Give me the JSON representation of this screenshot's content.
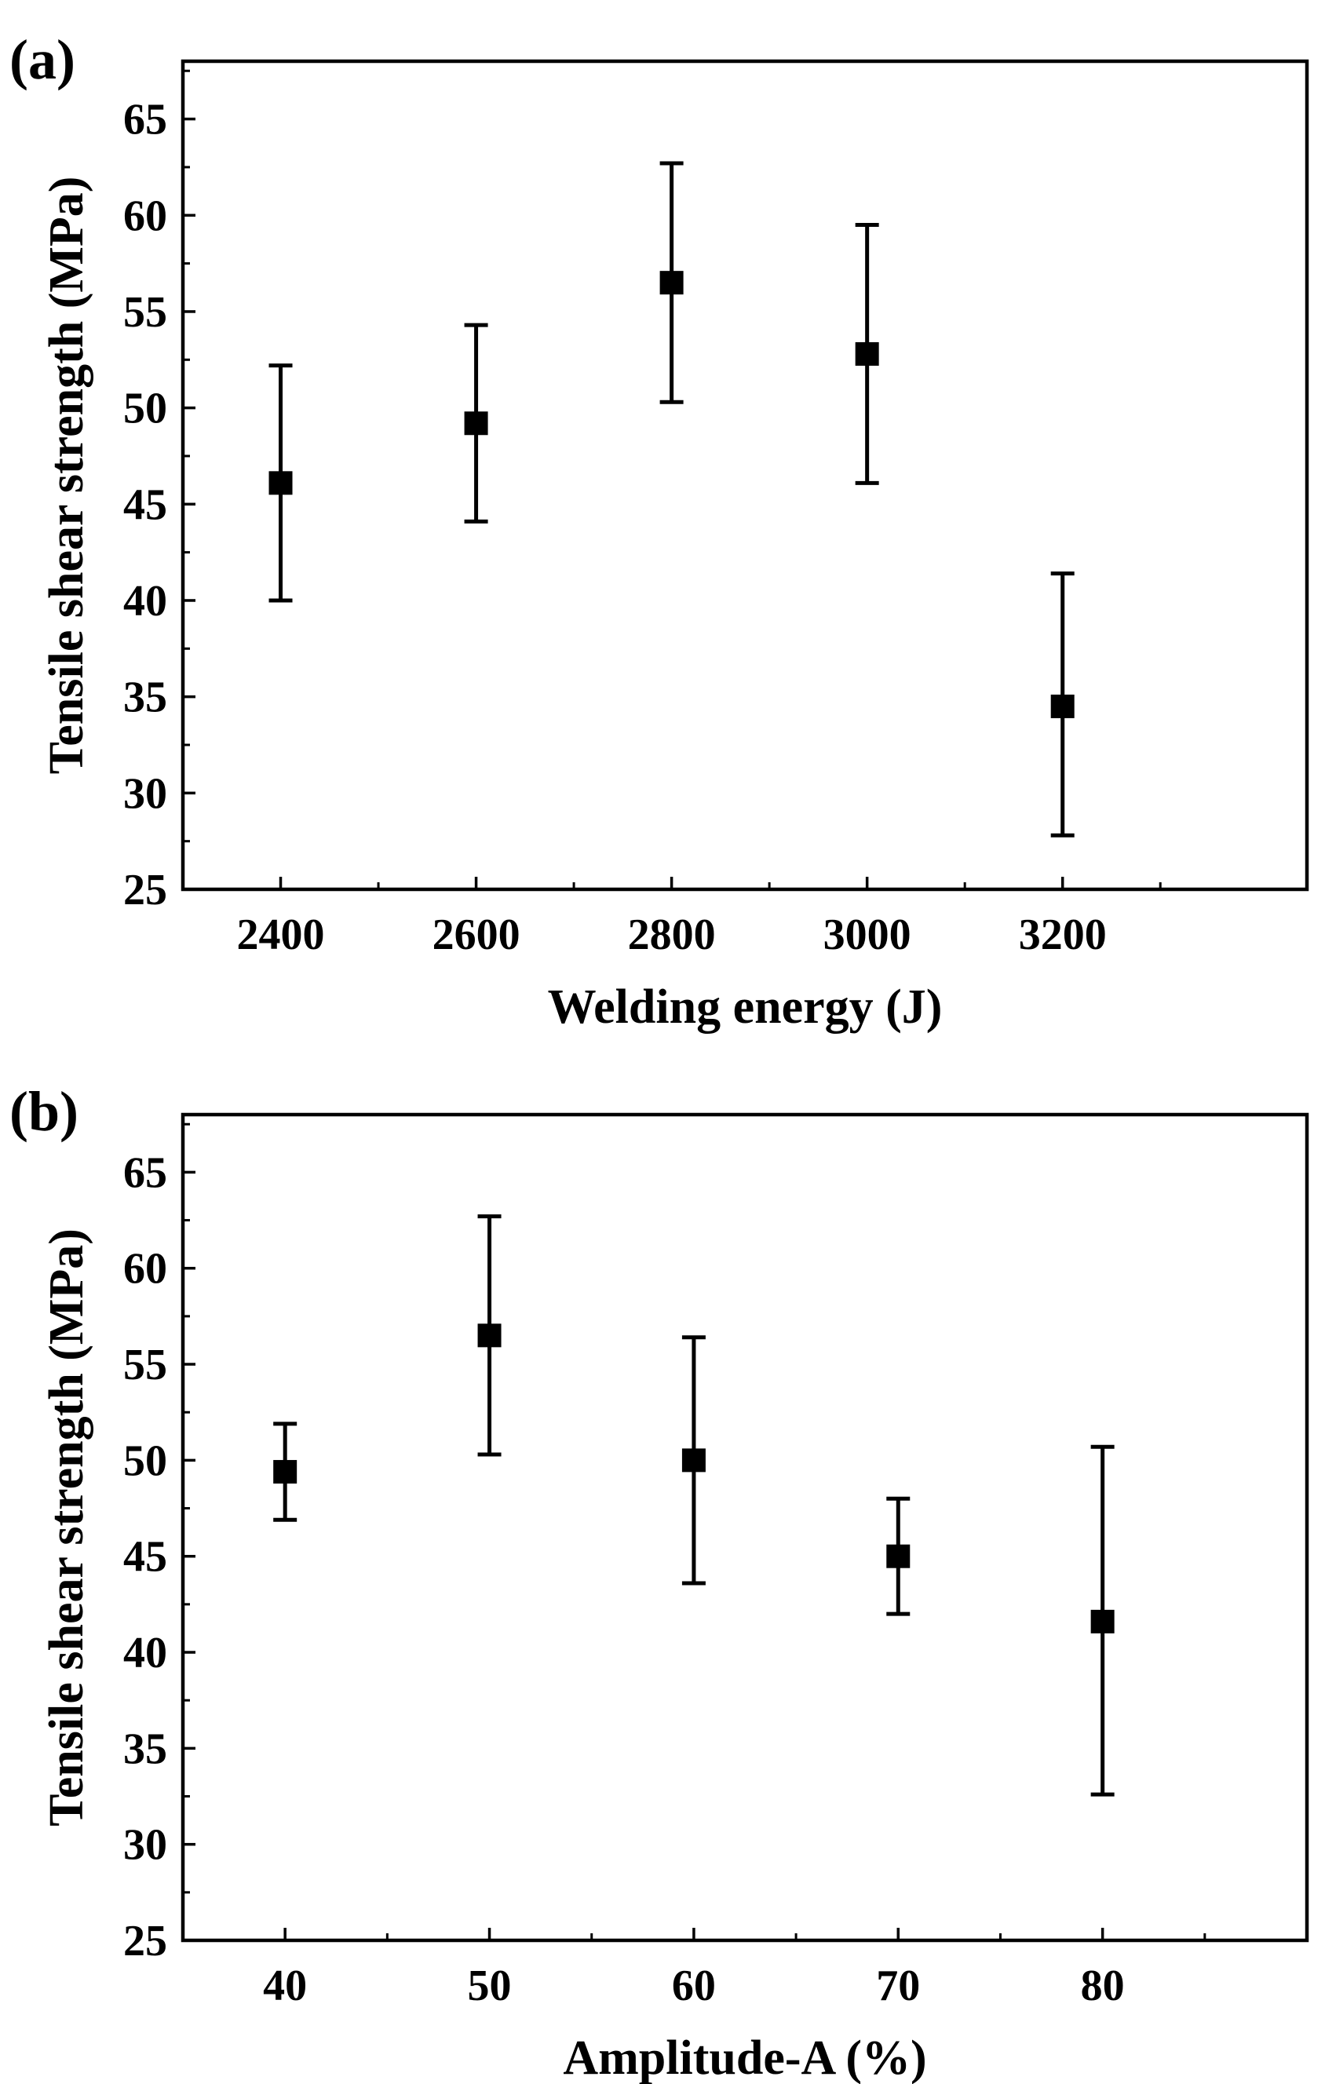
{
  "chart_data": [
    {
      "type": "scatter",
      "panel_label": "(a)",
      "xlabel": "Welding energy (J)",
      "ylabel": "Tensile shear strength (MPa)",
      "x": [
        2400,
        2600,
        2800,
        3000,
        3200
      ],
      "x_tick_labels": [
        "2400",
        "2600",
        "2800",
        "3000",
        "3200"
      ],
      "xlim": [
        2300,
        3450
      ],
      "y": [
        46.1,
        49.2,
        56.5,
        52.8,
        34.5
      ],
      "y_upper": [
        52.2,
        54.3,
        62.7,
        59.5,
        41.4
      ],
      "y_lower": [
        40.0,
        44.1,
        50.3,
        46.1,
        27.8
      ],
      "ylim": [
        25,
        68
      ],
      "y_ticks": [
        25,
        30,
        35,
        40,
        45,
        50,
        55,
        60,
        65
      ],
      "y_tick_labels": [
        "25",
        "30",
        "35",
        "40",
        "45",
        "50",
        "55",
        "60",
        "65"
      ]
    },
    {
      "type": "scatter",
      "panel_label": "(b)",
      "xlabel": "Amplitude-A (%)",
      "ylabel": "Tensile shear strength (MPa)",
      "x": [
        40,
        50,
        60,
        70,
        80
      ],
      "x_tick_labels": [
        "40",
        "50",
        "60",
        "70",
        "80"
      ],
      "xlim": [
        35,
        90
      ],
      "y": [
        49.4,
        56.5,
        50.0,
        45.0,
        41.6
      ],
      "y_upper": [
        51.9,
        62.7,
        56.4,
        48.0,
        50.7
      ],
      "y_lower": [
        46.9,
        50.3,
        43.6,
        42.0,
        32.6
      ],
      "ylim": [
        25,
        68
      ],
      "y_ticks": [
        25,
        30,
        35,
        40,
        45,
        50,
        55,
        60,
        65
      ],
      "y_tick_labels": [
        "25",
        "30",
        "35",
        "40",
        "45",
        "50",
        "55",
        "60",
        "65"
      ]
    }
  ]
}
